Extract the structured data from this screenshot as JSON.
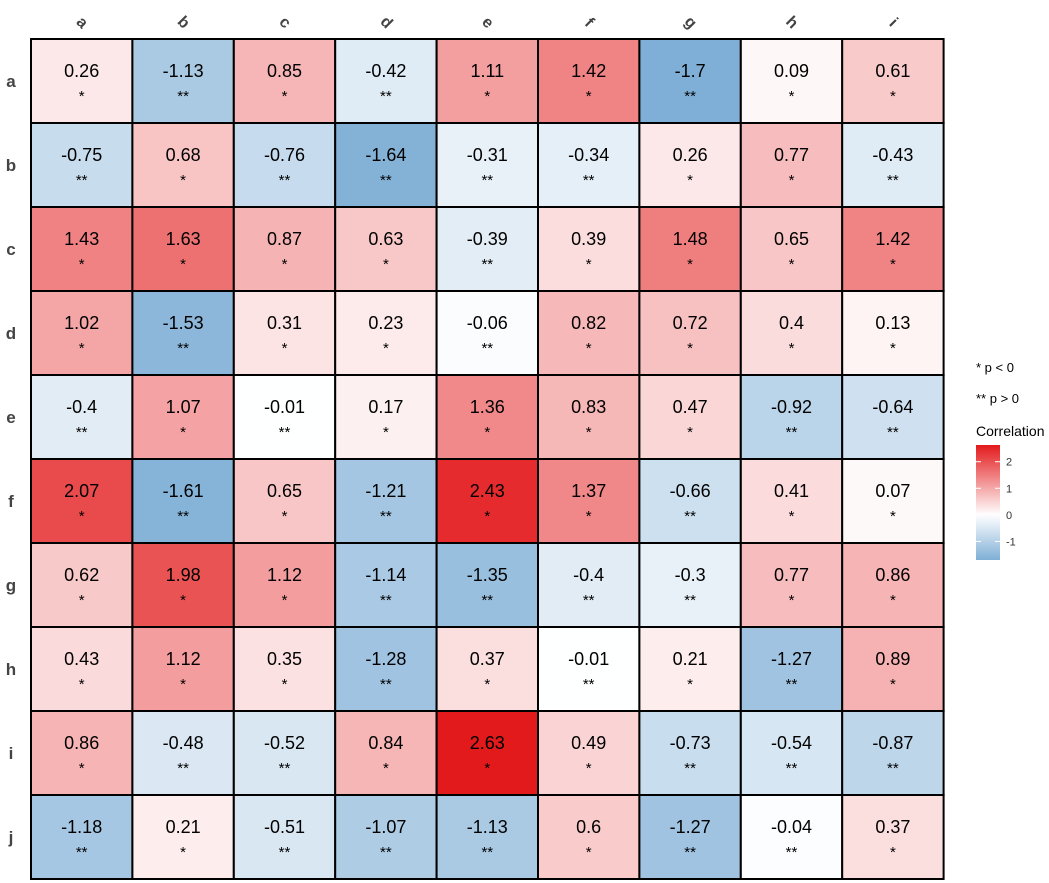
{
  "chart_data": {
    "type": "heatmap",
    "columns": [
      "a",
      "b",
      "c",
      "d",
      "e",
      "f",
      "g",
      "h",
      "i"
    ],
    "rows": [
      "a",
      "b",
      "c",
      "d",
      "e",
      "f",
      "g",
      "h",
      "i",
      "j"
    ],
    "values": [
      [
        0.26,
        -1.13,
        0.85,
        -0.42,
        1.11,
        1.42,
        -1.7,
        0.09,
        0.61
      ],
      [
        -0.75,
        0.68,
        -0.76,
        -1.64,
        -0.31,
        -0.34,
        0.26,
        0.77,
        -0.43
      ],
      [
        1.43,
        1.63,
        0.87,
        0.63,
        -0.39,
        0.39,
        1.48,
        0.65,
        1.42
      ],
      [
        1.02,
        -1.53,
        0.31,
        0.23,
        -0.06,
        0.82,
        0.72,
        0.4,
        0.13
      ],
      [
        -0.4,
        1.07,
        -0.01,
        0.17,
        1.36,
        0.83,
        0.47,
        -0.92,
        -0.64
      ],
      [
        2.07,
        -1.61,
        0.65,
        -1.21,
        2.43,
        1.37,
        -0.66,
        0.41,
        0.07
      ],
      [
        0.62,
        1.98,
        1.12,
        -1.14,
        -1.35,
        -0.4,
        -0.3,
        0.77,
        0.86
      ],
      [
        0.43,
        1.12,
        0.35,
        -1.28,
        0.37,
        -0.01,
        0.21,
        -1.27,
        0.89
      ],
      [
        0.86,
        -0.48,
        -0.52,
        0.84,
        2.63,
        0.49,
        -0.73,
        -0.54,
        -0.87
      ],
      [
        -1.18,
        0.21,
        -0.51,
        -1.07,
        -1.13,
        0.6,
        -1.27,
        -0.04,
        0.37
      ]
    ],
    "labels": [
      [
        "0.26",
        "-1.13",
        "0.85",
        "-0.42",
        "1.11",
        "1.42",
        "-1.7",
        "0.09",
        "0.61"
      ],
      [
        "-0.75",
        "0.68",
        "-0.76",
        "-1.64",
        "-0.31",
        "-0.34",
        "0.26",
        "0.77",
        "-0.43"
      ],
      [
        "1.43",
        "1.63",
        "0.87",
        "0.63",
        "-0.39",
        "0.39",
        "1.48",
        "0.65",
        "1.42"
      ],
      [
        "1.02",
        "-1.53",
        "0.31",
        "0.23",
        "-0.06",
        "0.82",
        "0.72",
        "0.4",
        "0.13"
      ],
      [
        "-0.4",
        "1.07",
        "-0.01",
        "0.17",
        "1.36",
        "0.83",
        "0.47",
        "-0.92",
        "-0.64"
      ],
      [
        "2.07",
        "-1.61",
        "0.65",
        "-1.21",
        "2.43",
        "1.37",
        "-0.66",
        "0.41",
        "0.07"
      ],
      [
        "0.62",
        "1.98",
        "1.12",
        "-1.14",
        "-1.35",
        "-0.4",
        "-0.3",
        "0.77",
        "0.86"
      ],
      [
        "0.43",
        "1.12",
        "0.35",
        "-1.28",
        "0.37",
        "-0.01",
        "0.21",
        "-1.27",
        "0.89"
      ],
      [
        "0.86",
        "-0.48",
        "-0.52",
        "0.84",
        "2.63",
        "0.49",
        "-0.73",
        "-0.54",
        "-0.87"
      ],
      [
        "-1.18",
        "0.21",
        "-0.51",
        "-1.07",
        "-1.13",
        "0.6",
        "-1.27",
        "-0.04",
        "0.37"
      ]
    ],
    "significance": [
      [
        "*",
        "**",
        "*",
        "**",
        "*",
        "*",
        "**",
        "*",
        "*"
      ],
      [
        "**",
        "*",
        "**",
        "**",
        "**",
        "**",
        "*",
        "*",
        "**"
      ],
      [
        "*",
        "*",
        "*",
        "*",
        "**",
        "*",
        "*",
        "*",
        "*"
      ],
      [
        "*",
        "**",
        "*",
        "*",
        "**",
        "*",
        "*",
        "*",
        "*"
      ],
      [
        "**",
        "*",
        "**",
        "*",
        "*",
        "*",
        "*",
        "**",
        "**"
      ],
      [
        "*",
        "**",
        "*",
        "**",
        "*",
        "*",
        "**",
        "*",
        "*"
      ],
      [
        "*",
        "*",
        "*",
        "**",
        "**",
        "**",
        "**",
        "*",
        "*"
      ],
      [
        "*",
        "*",
        "*",
        "**",
        "*",
        "**",
        "*",
        "**",
        "*"
      ],
      [
        "*",
        "**",
        "**",
        "*",
        "*",
        "*",
        "**",
        "**",
        "**"
      ],
      [
        "**",
        "*",
        "**",
        "**",
        "**",
        "*",
        "**",
        "**",
        "*"
      ]
    ],
    "legend": {
      "notes": [
        "* p < 0",
        "** p > 0"
      ],
      "title": "Correlation",
      "ticks": [
        "2",
        "1",
        "0",
        "-1"
      ],
      "tick_values": [
        2,
        1,
        0,
        -1
      ],
      "range": [
        -1.7,
        2.63
      ],
      "colors": {
        "low": "#7FAFD6",
        "mid": "#FFFFFF",
        "high": "#E31A1C"
      }
    }
  }
}
